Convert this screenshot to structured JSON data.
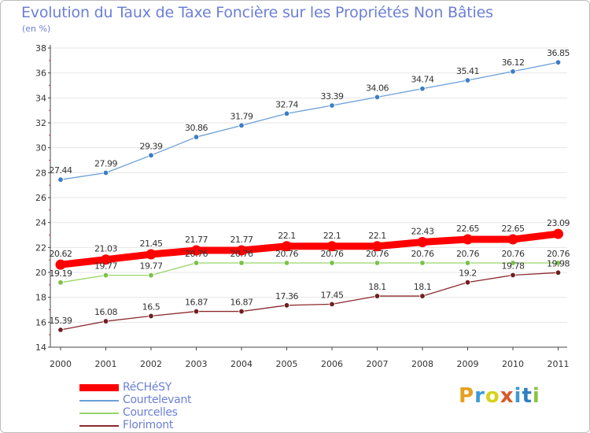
{
  "title": "Evolution du Taux de Taxe Foncière sur les Propriétés Non Bâties",
  "subtitle": "(en %)",
  "logo_text": "Proxiti",
  "logo_colors": [
    "#e5a021",
    "#3c9ad6",
    "#d6d21c",
    "#d65b2a",
    "#3c9ad6",
    "#2f7fc0",
    "#89c540"
  ],
  "chart_data": {
    "type": "line",
    "title": "Evolution du Taux de Taxe Foncière sur les Propriétés Non Bâties",
    "ylabel": "(en %)",
    "xlabel": "",
    "x": [
      "2000",
      "2001",
      "2002",
      "2003",
      "2004",
      "2005",
      "2006",
      "2007",
      "2008",
      "2009",
      "2010",
      "2011"
    ],
    "ylim": [
      14,
      38
    ],
    "yticks": [
      14,
      16,
      18,
      20,
      22,
      24,
      26,
      28,
      30,
      32,
      34,
      36,
      38
    ],
    "grid": "horizontal",
    "legend_position": "bottom-left",
    "series": [
      {
        "name": "RéCHéSY",
        "color": "#ff0000",
        "values": [
          20.62,
          21.03,
          21.45,
          21.77,
          21.77,
          22.1,
          22.1,
          22.1,
          22.43,
          22.65,
          22.65,
          23.09
        ],
        "labels": [
          "20.62",
          "21.03",
          "21.45",
          "21.77",
          "21.77",
          "22.1",
          "22.1",
          "22.1",
          "22.43",
          "22.65",
          "22.65",
          "23.09"
        ]
      },
      {
        "name": "Courtelevant",
        "color": "#6a9fd8",
        "values": [
          27.44,
          27.99,
          29.39,
          30.86,
          31.79,
          32.74,
          33.39,
          34.06,
          34.74,
          35.41,
          36.12,
          36.85
        ],
        "labels": [
          "27.44",
          "27.99",
          "29.39",
          "30.86",
          "31.79",
          "32.74",
          "33.39",
          "34.06",
          "34.74",
          "35.41",
          "36.12",
          "36.85"
        ]
      },
      {
        "name": "Courcelles",
        "color": "#98d56a",
        "values": [
          19.19,
          19.77,
          19.77,
          20.76,
          20.76,
          20.76,
          20.76,
          20.76,
          20.76,
          20.76,
          20.76,
          20.76
        ],
        "labels": [
          "19.19",
          "19.77",
          "19.77",
          "20.76",
          "20.76",
          "20.76",
          "20.76",
          "20.76",
          "20.76",
          "20.76",
          "20.76",
          "20.76"
        ]
      },
      {
        "name": "Florimont",
        "color": "#8b2a2e",
        "values": [
          15.39,
          16.08,
          16.5,
          16.87,
          16.87,
          17.36,
          17.45,
          18.1,
          18.1,
          19.2,
          19.78,
          19.98
        ],
        "labels": [
          "15.39",
          "16.08",
          "16.5",
          "16.87",
          "16.87",
          "17.36",
          "17.45",
          "18.1",
          "18.1",
          "19.2",
          "19.78",
          "19.98"
        ]
      }
    ]
  }
}
